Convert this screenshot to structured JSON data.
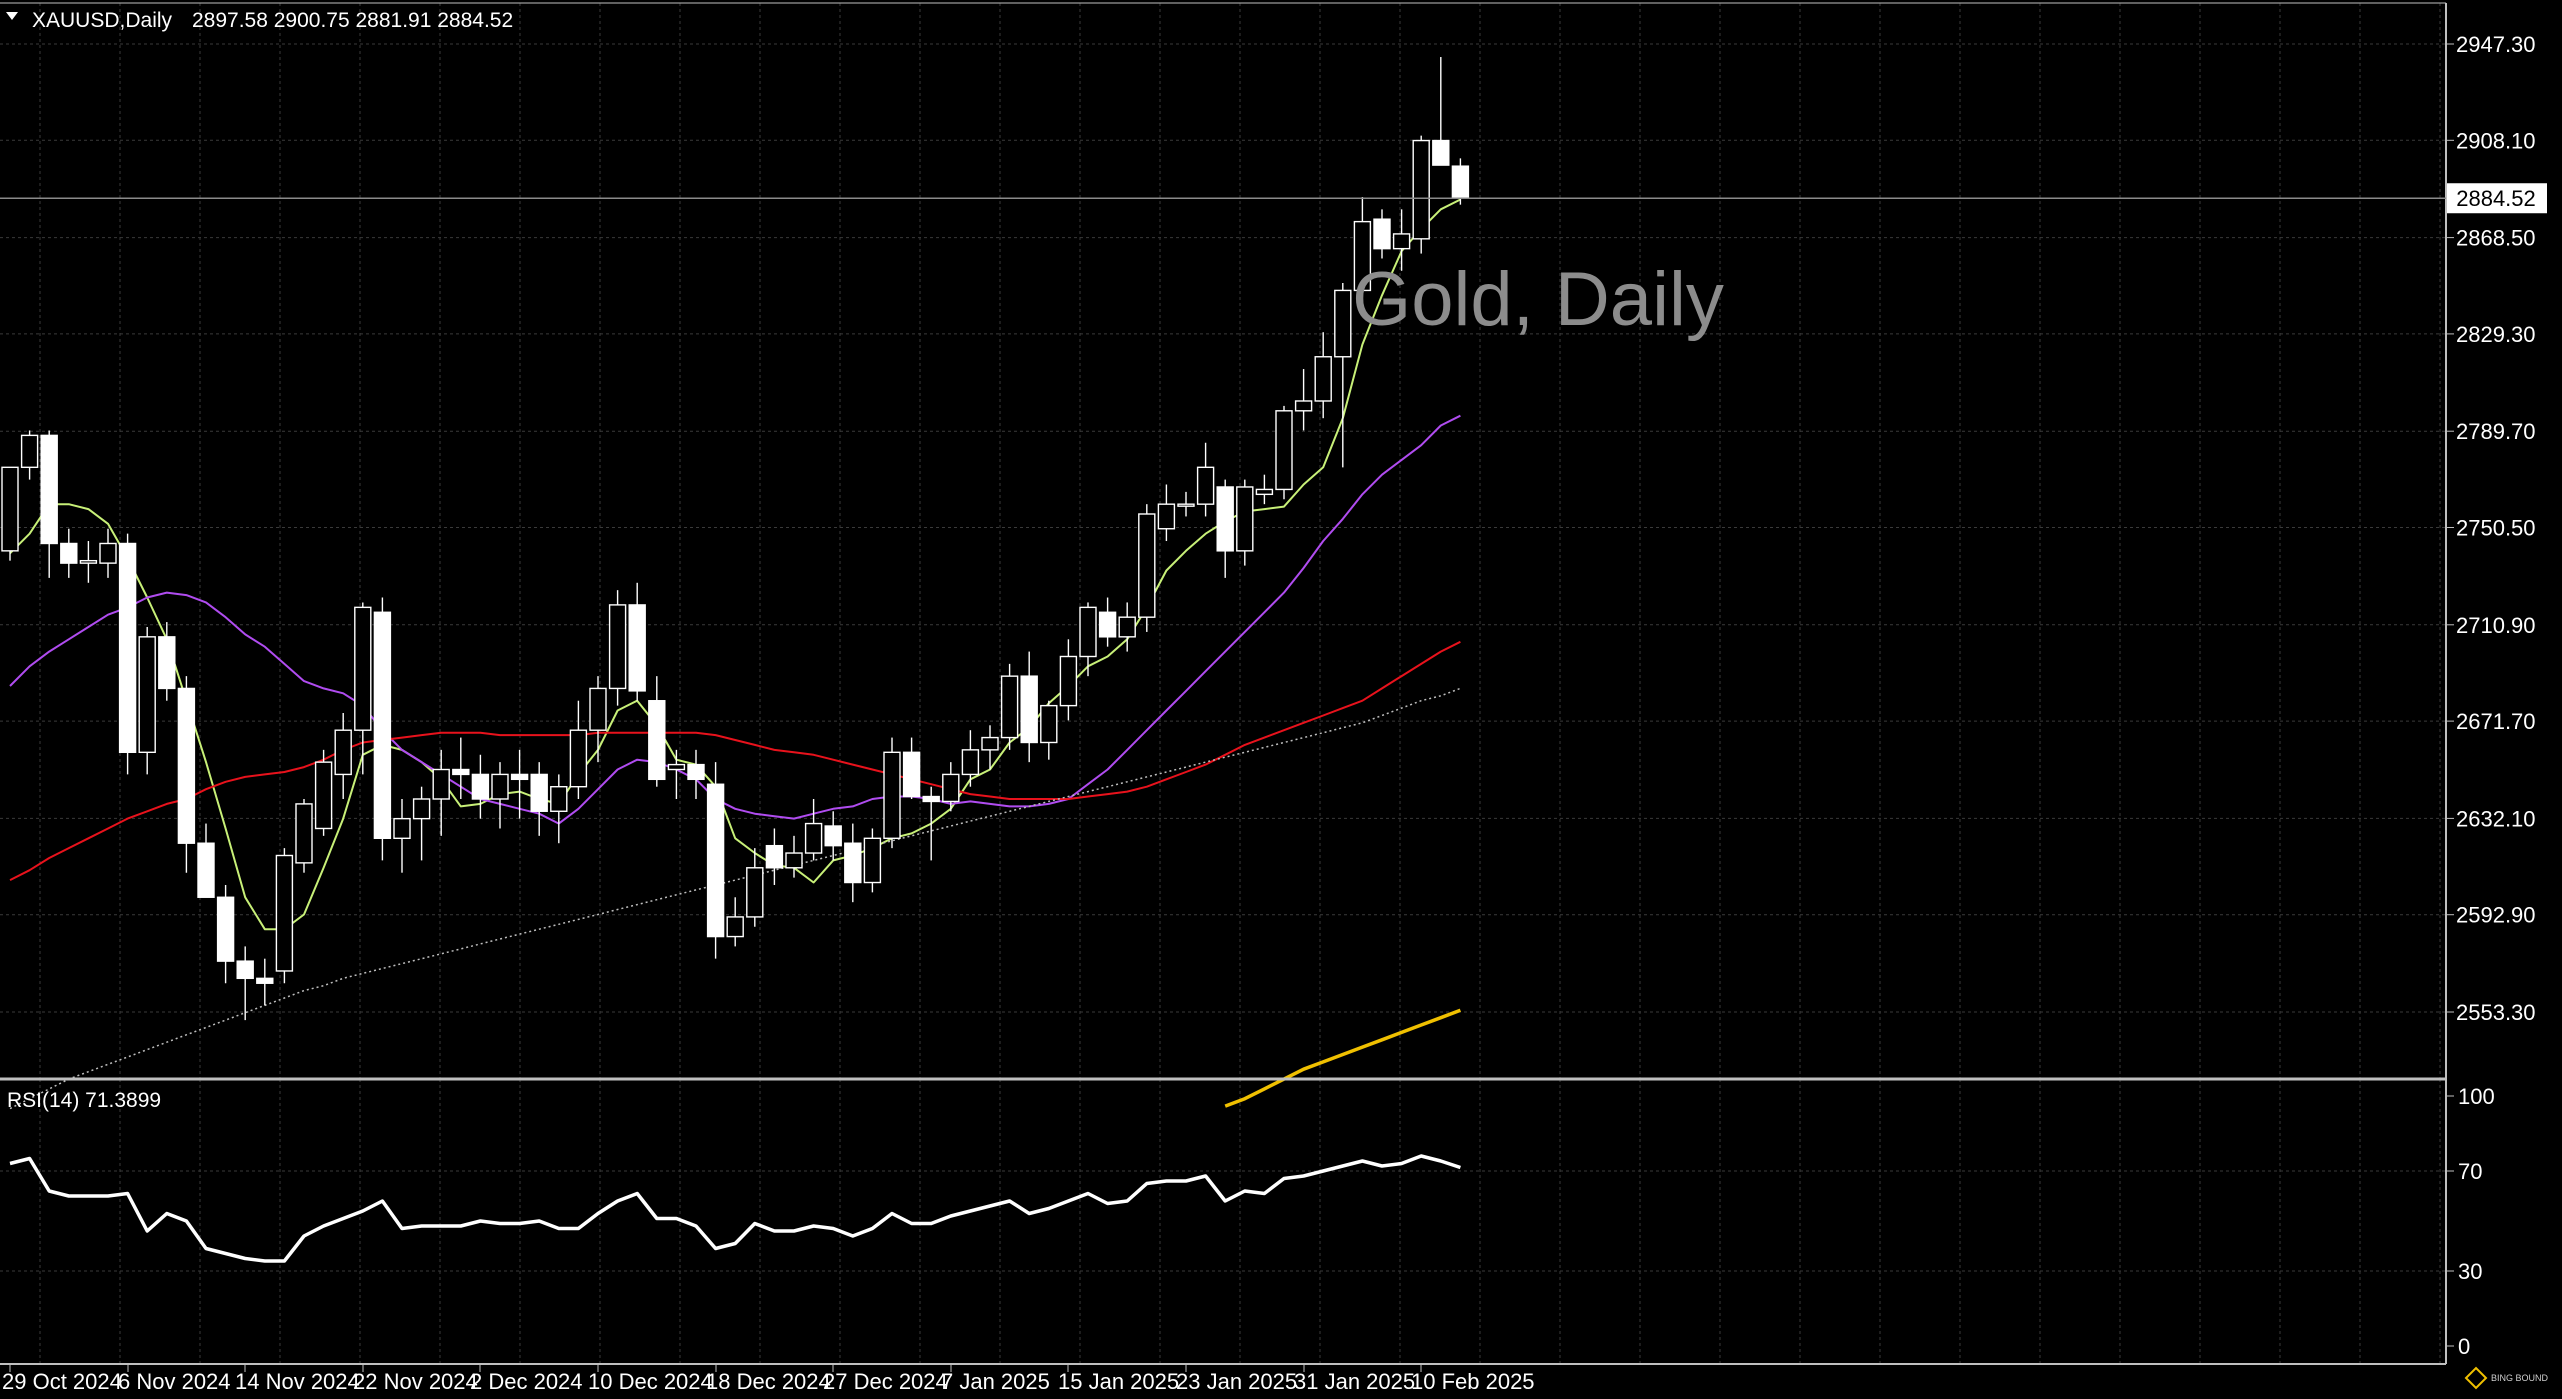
{
  "header": {
    "symbol": "XAUUSD,Daily",
    "ohlc": "2897.58 2900.75 2881.91 2884.52"
  },
  "watermark": "Gold, Daily",
  "current_price_label": "2884.52",
  "rsi_label": "RSI(14) 71.3899",
  "logo_text": "BING BOUND",
  "colors": {
    "background": "#000000",
    "grid": "#3a3a3a",
    "candle": "#ffffff",
    "ma_fast": "#c8f078",
    "ma_mid": "#b04cf0",
    "ma_slow": "#e8121c",
    "ma_200": "#bdbdbd",
    "ma_yellow": "#f0c000",
    "rsi": "#ffffff"
  },
  "chart_data": [
    {
      "type": "candlestick",
      "title": "XAUUSD,Daily",
      "y_ticks": [
        "2947.30",
        "2908.10",
        "2868.50",
        "2829.30",
        "2789.70",
        "2750.50",
        "2710.90",
        "2671.70",
        "2632.10",
        "2592.90",
        "2553.30"
      ],
      "ylim": [
        2514.0,
        2962.0
      ],
      "x_ticks": [
        "29 Oct 2024",
        "6 Nov 2024",
        "14 Nov 2024",
        "22 Nov 2024",
        "2 Dec 2024",
        "10 Dec 2024",
        "18 Dec 2024",
        "27 Dec 2024",
        "7 Jan 2025",
        "15 Jan 2025",
        "23 Jan 2025",
        "31 Jan 2025",
        "10 Feb 2025"
      ],
      "grid": true,
      "candles": [
        {
          "o": 2741,
          "h": 2775,
          "l": 2737,
          "c": 2775
        },
        {
          "o": 2775,
          "h": 2790,
          "l": 2770,
          "c": 2788
        },
        {
          "o": 2788,
          "h": 2790,
          "l": 2730,
          "c": 2744
        },
        {
          "o": 2744,
          "h": 2750,
          "l": 2730,
          "c": 2736
        },
        {
          "o": 2736,
          "h": 2745,
          "l": 2728,
          "c": 2737
        },
        {
          "o": 2736,
          "h": 2750,
          "l": 2730,
          "c": 2744
        },
        {
          "o": 2744,
          "h": 2748,
          "l": 2650,
          "c": 2659
        },
        {
          "o": 2659,
          "h": 2710,
          "l": 2650,
          "c": 2706
        },
        {
          "o": 2706,
          "h": 2712,
          "l": 2680,
          "c": 2685
        },
        {
          "o": 2685,
          "h": 2690,
          "l": 2610,
          "c": 2622
        },
        {
          "o": 2622,
          "h": 2630,
          "l": 2600,
          "c": 2600
        },
        {
          "o": 2600,
          "h": 2605,
          "l": 2565,
          "c": 2574
        },
        {
          "o": 2574,
          "h": 2580,
          "l": 2550,
          "c": 2567
        },
        {
          "o": 2567,
          "h": 2575,
          "l": 2556,
          "c": 2565
        },
        {
          "o": 2570,
          "h": 2620,
          "l": 2565,
          "c": 2617
        },
        {
          "o": 2614,
          "h": 2640,
          "l": 2610,
          "c": 2638
        },
        {
          "o": 2628,
          "h": 2660,
          "l": 2625,
          "c": 2655
        },
        {
          "o": 2650,
          "h": 2675,
          "l": 2640,
          "c": 2668
        },
        {
          "o": 2668,
          "h": 2720,
          "l": 2650,
          "c": 2718
        },
        {
          "o": 2716,
          "h": 2722,
          "l": 2615,
          "c": 2624
        },
        {
          "o": 2624,
          "h": 2640,
          "l": 2610,
          "c": 2632
        },
        {
          "o": 2632,
          "h": 2645,
          "l": 2615,
          "c": 2640
        },
        {
          "o": 2640,
          "h": 2660,
          "l": 2625,
          "c": 2652
        },
        {
          "o": 2652,
          "h": 2665,
          "l": 2640,
          "c": 2650
        },
        {
          "o": 2650,
          "h": 2658,
          "l": 2632,
          "c": 2640
        },
        {
          "o": 2640,
          "h": 2655,
          "l": 2628,
          "c": 2650
        },
        {
          "o": 2650,
          "h": 2660,
          "l": 2632,
          "c": 2648
        },
        {
          "o": 2650,
          "h": 2655,
          "l": 2625,
          "c": 2635
        },
        {
          "o": 2635,
          "h": 2650,
          "l": 2622,
          "c": 2645
        },
        {
          "o": 2645,
          "h": 2680,
          "l": 2640,
          "c": 2668
        },
        {
          "o": 2668,
          "h": 2690,
          "l": 2655,
          "c": 2685
        },
        {
          "o": 2685,
          "h": 2725,
          "l": 2678,
          "c": 2719
        },
        {
          "o": 2719,
          "h": 2728,
          "l": 2680,
          "c": 2684
        },
        {
          "o": 2680,
          "h": 2690,
          "l": 2645,
          "c": 2648
        },
        {
          "o": 2652,
          "h": 2660,
          "l": 2640,
          "c": 2654
        },
        {
          "o": 2654,
          "h": 2660,
          "l": 2640,
          "c": 2648
        },
        {
          "o": 2646,
          "h": 2655,
          "l": 2575,
          "c": 2584
        },
        {
          "o": 2584,
          "h": 2600,
          "l": 2580,
          "c": 2592
        },
        {
          "o": 2592,
          "h": 2620,
          "l": 2588,
          "c": 2612
        },
        {
          "o": 2621,
          "h": 2628,
          "l": 2605,
          "c": 2612
        },
        {
          "o": 2612,
          "h": 2625,
          "l": 2608,
          "c": 2618
        },
        {
          "o": 2618,
          "h": 2640,
          "l": 2615,
          "c": 2630
        },
        {
          "o": 2629,
          "h": 2635,
          "l": 2615,
          "c": 2621
        },
        {
          "o": 2622,
          "h": 2630,
          "l": 2598,
          "c": 2606
        },
        {
          "o": 2606,
          "h": 2628,
          "l": 2602,
          "c": 2624
        },
        {
          "o": 2624,
          "h": 2665,
          "l": 2620,
          "c": 2659
        },
        {
          "o": 2659,
          "h": 2665,
          "l": 2640,
          "c": 2641
        },
        {
          "o": 2641,
          "h": 2645,
          "l": 2615,
          "c": 2639
        },
        {
          "o": 2639,
          "h": 2655,
          "l": 2635,
          "c": 2650
        },
        {
          "o": 2650,
          "h": 2668,
          "l": 2645,
          "c": 2660
        },
        {
          "o": 2660,
          "h": 2670,
          "l": 2652,
          "c": 2665
        },
        {
          "o": 2665,
          "h": 2695,
          "l": 2660,
          "c": 2690
        },
        {
          "o": 2690,
          "h": 2700,
          "l": 2655,
          "c": 2663
        },
        {
          "o": 2663,
          "h": 2680,
          "l": 2656,
          "c": 2678
        },
        {
          "o": 2678,
          "h": 2705,
          "l": 2672,
          "c": 2698
        },
        {
          "o": 2698,
          "h": 2720,
          "l": 2690,
          "c": 2718
        },
        {
          "o": 2716,
          "h": 2722,
          "l": 2702,
          "c": 2706
        },
        {
          "o": 2706,
          "h": 2720,
          "l": 2700,
          "c": 2714
        },
        {
          "o": 2714,
          "h": 2760,
          "l": 2708,
          "c": 2756
        },
        {
          "o": 2750,
          "h": 2768,
          "l": 2745,
          "c": 2760
        },
        {
          "o": 2760,
          "h": 2765,
          "l": 2755,
          "c": 2760
        },
        {
          "o": 2760,
          "h": 2785,
          "l": 2755,
          "c": 2775
        },
        {
          "o": 2767,
          "h": 2770,
          "l": 2730,
          "c": 2741
        },
        {
          "o": 2741,
          "h": 2770,
          "l": 2735,
          "c": 2767
        },
        {
          "o": 2764,
          "h": 2772,
          "l": 2760,
          "c": 2766
        },
        {
          "o": 2766,
          "h": 2800,
          "l": 2762,
          "c": 2798
        },
        {
          "o": 2798,
          "h": 2815,
          "l": 2790,
          "c": 2802
        },
        {
          "o": 2802,
          "h": 2830,
          "l": 2795,
          "c": 2820
        },
        {
          "o": 2820,
          "h": 2850,
          "l": 2775,
          "c": 2847
        },
        {
          "o": 2847,
          "h": 2885,
          "l": 2840,
          "c": 2875
        },
        {
          "o": 2876,
          "h": 2880,
          "l": 2860,
          "c": 2864
        },
        {
          "o": 2864,
          "h": 2880,
          "l": 2855,
          "c": 2870
        },
        {
          "o": 2868,
          "h": 2910,
          "l": 2862,
          "c": 2908
        },
        {
          "o": 2908,
          "h": 2942,
          "l": 2898,
          "c": 2898
        },
        {
          "o": 2897.58,
          "h": 2900.75,
          "l": 2881.91,
          "c": 2884.52
        }
      ],
      "indicators": [
        {
          "name": "MA fast",
          "color": "#c8f078",
          "values": [
            2740,
            2748,
            2760,
            2760,
            2758,
            2752,
            2738,
            2722,
            2705,
            2680,
            2655,
            2628,
            2600,
            2587,
            2587,
            2593,
            2612,
            2632,
            2658,
            2662,
            2660,
            2655,
            2648,
            2637,
            2638,
            2642,
            2643,
            2640,
            2638,
            2650,
            2660,
            2676,
            2680,
            2670,
            2656,
            2654,
            2645,
            2624,
            2618,
            2613,
            2612,
            2606,
            2615,
            2617,
            2620,
            2624,
            2626,
            2630,
            2636,
            2648,
            2652,
            2663,
            2669,
            2679,
            2686,
            2694,
            2698,
            2705,
            2718,
            2733,
            2741,
            2748,
            2753,
            2757,
            2758,
            2759,
            2768,
            2775,
            2795,
            2825,
            2845,
            2863,
            2872,
            2880,
            2884
          ]
        },
        {
          "name": "MA mid",
          "color": "#b04cf0",
          "values": [
            2686,
            2694,
            2700,
            2705,
            2710,
            2715,
            2718,
            2722,
            2724,
            2723,
            2720,
            2714,
            2707,
            2702,
            2695,
            2688,
            2685,
            2683,
            2678,
            2668,
            2660,
            2655,
            2650,
            2645,
            2640,
            2638,
            2636,
            2634,
            2630,
            2636,
            2644,
            2652,
            2656,
            2655,
            2652,
            2648,
            2640,
            2636,
            2634,
            2633,
            2632,
            2634,
            2636,
            2637,
            2640,
            2641,
            2641,
            2640,
            2638,
            2639,
            2638,
            2637,
            2637,
            2638,
            2640,
            2646,
            2652,
            2660,
            2668,
            2676,
            2684,
            2692,
            2700,
            2708,
            2716,
            2724,
            2734,
            2745,
            2754,
            2764,
            2772,
            2778,
            2784,
            2792,
            2796
          ]
        },
        {
          "name": "MA slow",
          "color": "#e8121c",
          "values": [
            2607,
            2611,
            2616,
            2620,
            2624,
            2628,
            2632,
            2635,
            2638,
            2640,
            2644,
            2647,
            2649,
            2650,
            2651,
            2653,
            2656,
            2660,
            2663,
            2664,
            2665,
            2666,
            2667,
            2667,
            2667,
            2666,
            2666,
            2666,
            2666,
            2666,
            2667,
            2667,
            2667,
            2667,
            2667,
            2667,
            2666,
            2664,
            2662,
            2660,
            2659,
            2658,
            2656,
            2654,
            2652,
            2650,
            2648,
            2646,
            2644,
            2642,
            2641,
            2640,
            2640,
            2640,
            2640,
            2641,
            2642,
            2643,
            2645,
            2648,
            2651,
            2654,
            2658,
            2662,
            2665,
            2668,
            2671,
            2674,
            2677,
            2680,
            2685,
            2690,
            2695,
            2700,
            2704
          ]
        },
        {
          "name": "MA 200",
          "color": "#bdbdbd",
          "dotted": true,
          "values": [
            2514,
            2518,
            2522,
            2526,
            2529,
            2532,
            2535,
            2538,
            2541,
            2544,
            2547,
            2550,
            2553,
            2556,
            2559,
            2562,
            2564,
            2567,
            2569,
            2571,
            2573,
            2575,
            2577,
            2579,
            2581,
            2583,
            2585,
            2587,
            2589,
            2591,
            2593,
            2595,
            2597,
            2599,
            2601,
            2603,
            2605,
            2607,
            2609,
            2611,
            2613,
            2615,
            2617,
            2619,
            2621,
            2623,
            2625,
            2627,
            2629,
            2631,
            2633,
            2635,
            2637,
            2639,
            2641,
            2643,
            2645,
            2647,
            2649,
            2651,
            2653,
            2655,
            2657,
            2659,
            2661,
            2663,
            2665,
            2667,
            2669,
            2671,
            2674,
            2677,
            2680,
            2682,
            2685
          ]
        },
        {
          "name": "MA yellow",
          "color": "#f0c000",
          "start": 62,
          "values": [
            2515,
            2518,
            2522,
            2526,
            2530,
            2533,
            2536,
            2539,
            2542,
            2545,
            2548,
            2551,
            2554
          ]
        }
      ]
    },
    {
      "type": "line",
      "title": "RSI(14) 71.3899",
      "y_ticks": [
        "100",
        "70",
        "30",
        "0"
      ],
      "ylim": [
        0,
        100
      ],
      "series": [
        {
          "color": "#ffffff",
          "values": [
            73,
            75,
            62,
            60,
            60,
            60,
            61,
            46,
            53,
            50,
            39,
            37,
            35,
            34,
            34,
            44,
            48,
            51,
            54,
            58,
            47,
            48,
            48,
            48,
            50,
            49,
            49,
            50,
            47,
            47,
            53,
            58,
            61,
            51,
            51,
            48,
            39,
            41,
            49,
            46,
            46,
            48,
            47,
            44,
            47,
            53,
            49,
            49,
            52,
            54,
            56,
            58,
            53,
            55,
            58,
            61,
            57,
            58,
            65,
            66,
            66,
            68,
            58,
            62,
            61,
            67,
            68,
            70,
            72,
            74,
            72,
            73,
            76,
            74,
            71.39
          ]
        }
      ]
    }
  ]
}
